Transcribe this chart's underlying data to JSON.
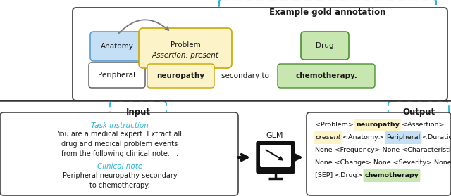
{
  "fig_width": 6.4,
  "fig_height": 2.79,
  "dpi": 100,
  "bg_color": "#ffffff",
  "top_label": "Example gold annotation",
  "cyan_color": "#2ab4d8",
  "dark_color": "#1a1a1a",
  "highlight_yellow": "#fdf3c8",
  "highlight_blue": "#c5e0f5",
  "highlight_green": "#c8e6b0",
  "yellow_border": "#c8a800",
  "blue_border": "#5a9fd4",
  "green_border": "#4a9030",
  "gray_border": "#555555",
  "task_instruction": "Task instruction",
  "task_body": "You are a medical expert. Extract all\ndrug and medical problem events\nfrom the following clinical note. ...",
  "clinical_note_label": "Clinical note",
  "clinical_note_body": "Peripheral neuropathy secondary\nto chemotherapy.",
  "glm_label": "GLM"
}
